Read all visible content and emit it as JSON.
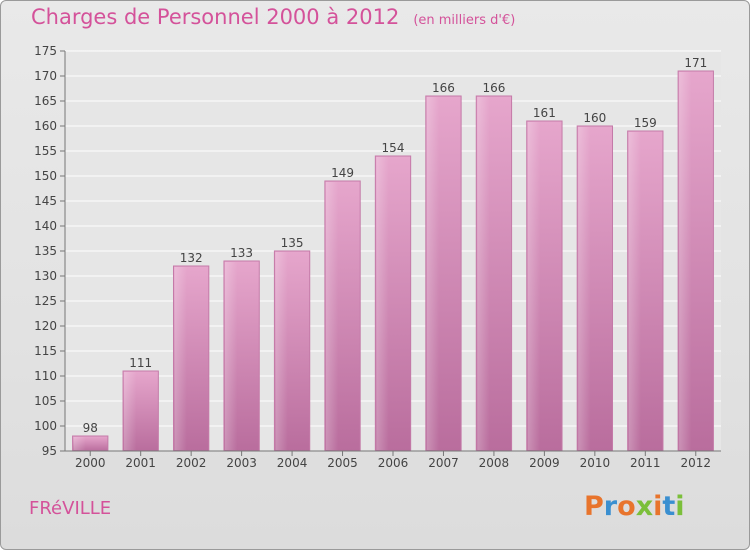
{
  "header": {
    "title": "Charges de Personnel 2000 à 2012",
    "unit": "(en milliers d'€)"
  },
  "footer": {
    "commune": "FRéVILLE",
    "logo_letters": [
      "P",
      "r",
      "o",
      "x",
      "i",
      "t",
      "i"
    ],
    "logo_colors": [
      "#e8742c",
      "#3a8fd0",
      "#e8742c",
      "#7bbf3a",
      "#e8742c",
      "#3a8fd0",
      "#7bbf3a"
    ]
  },
  "chart_data": {
    "type": "bar",
    "title": "Charges de Personnel 2000 à 2012",
    "subtitle": "(en milliers d'€)",
    "xlabel": "",
    "ylabel": "",
    "categories": [
      "2000",
      "2001",
      "2002",
      "2003",
      "2004",
      "2005",
      "2006",
      "2007",
      "2008",
      "2009",
      "2010",
      "2011",
      "2012"
    ],
    "values": [
      98,
      111,
      132,
      133,
      135,
      149,
      154,
      166,
      166,
      161,
      160,
      159,
      171
    ],
    "ylim": [
      95,
      175
    ],
    "yticks": [
      95,
      100,
      105,
      110,
      115,
      120,
      125,
      130,
      135,
      140,
      145,
      150,
      155,
      160,
      165,
      170,
      175
    ],
    "grid": true,
    "bar_color": "#d98fbb"
  }
}
